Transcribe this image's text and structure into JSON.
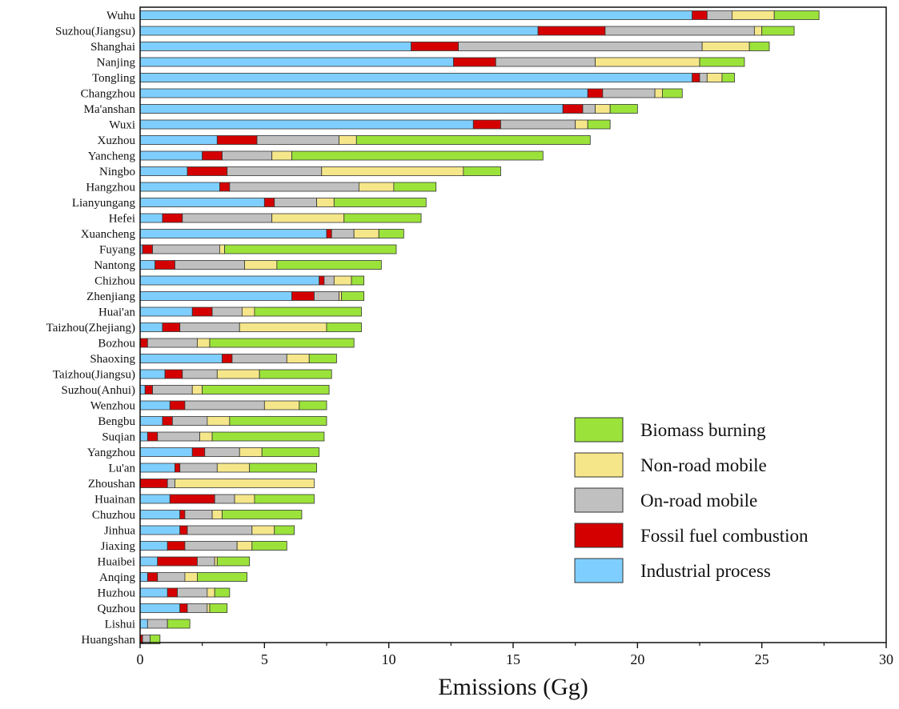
{
  "chart_data": {
    "type": "bar",
    "orientation": "horizontal",
    "stacked": true,
    "title": "",
    "xlabel": "Emissions (Gg)",
    "ylabel": "",
    "xlim": [
      0,
      30
    ],
    "xticks": [
      0,
      5,
      10,
      15,
      20,
      25,
      30
    ],
    "grid": false,
    "legend_position": "bottom-right",
    "categories": [
      "Wuhu",
      "Suzhou(Jiangsu)",
      "Shanghai",
      "Nanjing",
      "Tongling",
      "Changzhou",
      "Ma'anshan",
      "Wuxi",
      "Xuzhou",
      "Yancheng",
      "Ningbo",
      "Hangzhou",
      "Lianyungang",
      "Hefei",
      "Xuancheng",
      "Fuyang",
      "Nantong",
      "Chizhou",
      "Zhenjiang",
      "Huai'an",
      "Taizhou(Zhejiang)",
      "Bozhou",
      "Shaoxing",
      "Taizhou(Jiangsu)",
      "Suzhou(Anhui)",
      "Wenzhou",
      "Bengbu",
      "Suqian",
      "Yangzhou",
      "Lu'an",
      "Zhoushan",
      "Huainan",
      "Chuzhou",
      "Jinhua",
      "Jiaxing",
      "Huaibei",
      "Anqing",
      "Huzhou",
      "Quzhou",
      "Lishui",
      "Huangshan"
    ],
    "series": [
      {
        "name": "Industrial process",
        "color": "#7ecfff",
        "values": [
          22.2,
          16.0,
          10.9,
          12.6,
          22.2,
          18.0,
          17.0,
          13.4,
          3.1,
          2.5,
          1.9,
          3.2,
          5.0,
          0.9,
          7.5,
          0.1,
          0.6,
          7.2,
          6.1,
          2.1,
          0.9,
          0.0,
          3.3,
          1.0,
          0.2,
          1.2,
          0.9,
          0.3,
          2.1,
          1.4,
          0.0,
          1.2,
          1.6,
          1.6,
          1.1,
          0.7,
          0.3,
          1.1,
          1.6,
          0.3,
          0.0
        ]
      },
      {
        "name": "Fossil fuel combustion",
        "color": "#d40000",
        "values": [
          0.6,
          2.7,
          1.9,
          1.7,
          0.3,
          0.6,
          0.8,
          1.1,
          1.6,
          0.8,
          1.6,
          0.4,
          0.4,
          0.8,
          0.2,
          0.4,
          0.8,
          0.2,
          0.9,
          0.8,
          0.7,
          0.3,
          0.4,
          0.7,
          0.3,
          0.6,
          0.4,
          0.4,
          0.5,
          0.2,
          1.1,
          1.8,
          0.2,
          0.3,
          0.7,
          1.6,
          0.4,
          0.4,
          0.3,
          0.0,
          0.1
        ]
      },
      {
        "name": "On-road mobile",
        "color": "#c0c0c0",
        "values": [
          1.0,
          6.0,
          9.8,
          4.0,
          0.3,
          2.1,
          0.5,
          3.0,
          3.3,
          2.0,
          3.8,
          5.2,
          1.7,
          3.6,
          0.9,
          2.7,
          2.8,
          0.4,
          1.0,
          1.2,
          2.4,
          2.0,
          2.2,
          1.4,
          1.6,
          3.2,
          1.4,
          1.7,
          1.4,
          1.5,
          0.3,
          0.8,
          1.1,
          2.6,
          2.1,
          0.7,
          1.1,
          1.2,
          0.8,
          0.8,
          0.3
        ]
      },
      {
        "name": "Non-road mobile",
        "color": "#f5e68a",
        "values": [
          1.7,
          0.3,
          1.9,
          4.2,
          0.6,
          0.3,
          0.6,
          0.5,
          0.7,
          0.8,
          5.7,
          1.4,
          0.7,
          2.9,
          1.0,
          0.2,
          1.3,
          0.7,
          0.1,
          0.5,
          3.5,
          0.5,
          0.9,
          1.7,
          0.4,
          1.4,
          0.9,
          0.5,
          0.9,
          1.3,
          5.6,
          0.8,
          0.4,
          0.9,
          0.6,
          0.1,
          0.5,
          0.3,
          0.1,
          0.0,
          0.0
        ]
      },
      {
        "name": "Biomass burning",
        "color": "#9be33a",
        "values": [
          1.8,
          1.3,
          0.8,
          1.8,
          0.5,
          0.8,
          1.1,
          0.9,
          9.4,
          10.1,
          1.5,
          1.7,
          3.7,
          3.1,
          1.0,
          6.9,
          4.2,
          0.5,
          0.9,
          4.3,
          1.4,
          5.8,
          1.1,
          2.9,
          5.1,
          1.1,
          3.9,
          4.5,
          2.3,
          2.7,
          0.0,
          2.4,
          3.2,
          0.8,
          1.4,
          1.3,
          2.0,
          0.6,
          0.7,
          0.9,
          0.4
        ]
      }
    ]
  },
  "legend": {
    "items": [
      {
        "label": "Biomass burning",
        "color": "#9be33a"
      },
      {
        "label": "Non-road mobile",
        "color": "#f5e68a"
      },
      {
        "label": "On-road mobile",
        "color": "#c0c0c0"
      },
      {
        "label": "Fossil fuel combustion",
        "color": "#d40000"
      },
      {
        "label": "Industrial process",
        "color": "#7ecfff"
      }
    ]
  }
}
